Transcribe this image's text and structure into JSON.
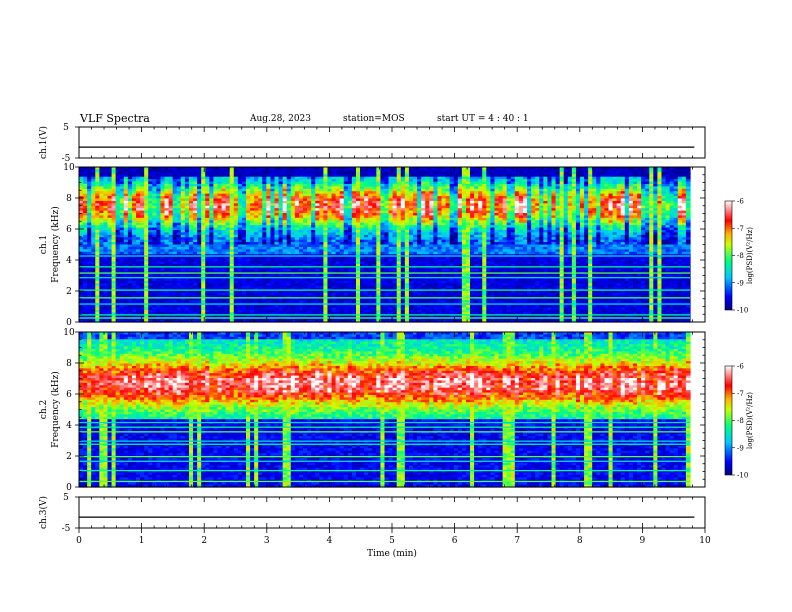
{
  "header": {
    "title": "VLF Spectra",
    "date": "Aug.28, 2023",
    "station": "station=MOS",
    "start": "start UT =  4 : 40 : 1"
  },
  "chart_data": [
    {
      "type": "line",
      "name": "ch1-voltage",
      "ylabel": "ch.1(V)",
      "ylim": [
        -5,
        5
      ],
      "yticks": [
        "5",
        "-5"
      ],
      "x": [
        0,
        10
      ],
      "y": [
        -1.5,
        -1.5
      ]
    },
    {
      "type": "heatmap",
      "name": "ch1-spectrogram",
      "ylabel": "ch.1\nFrequency (kHz)",
      "ylim": [
        0,
        10
      ],
      "yticks": [
        "0",
        "2",
        "4",
        "6",
        "8",
        "10"
      ],
      "xlim": [
        0,
        10
      ],
      "colorbar": {
        "label": "log(PSD)(V²/Hz)",
        "range": [
          -10,
          -6
        ],
        "ticks": [
          "-6",
          "-7",
          "-8",
          "-9",
          "-10"
        ]
      }
    },
    {
      "type": "heatmap",
      "name": "ch2-spectrogram",
      "ylabel": "ch.2\nFrequency (kHz)",
      "ylim": [
        0,
        10
      ],
      "yticks": [
        "0",
        "2",
        "4",
        "6",
        "8",
        "10"
      ],
      "xlim": [
        0,
        10
      ],
      "colorbar": {
        "label": "log(PSD)(V²/Hz)",
        "range": [
          -10,
          -6
        ],
        "ticks": [
          "-6",
          "-7",
          "-8",
          "-9",
          "-10"
        ]
      }
    },
    {
      "type": "line",
      "name": "ch3-voltage",
      "ylabel": "ch.3(V)",
      "ylim": [
        -5,
        5
      ],
      "yticks": [
        "5",
        "-5"
      ],
      "x": [
        0,
        10
      ],
      "y": [
        -1.5,
        -1.5
      ]
    }
  ],
  "xaxis": {
    "label": "Time  (min)",
    "xlim": [
      0,
      10
    ],
    "ticks": [
      "0",
      "1",
      "2",
      "3",
      "4",
      "5",
      "6",
      "7",
      "8",
      "9",
      "10"
    ]
  },
  "colors": {
    "low": "#00008f",
    "mid": "#00ff80",
    "high": "#ff1a00",
    "top": "#ffffff"
  }
}
